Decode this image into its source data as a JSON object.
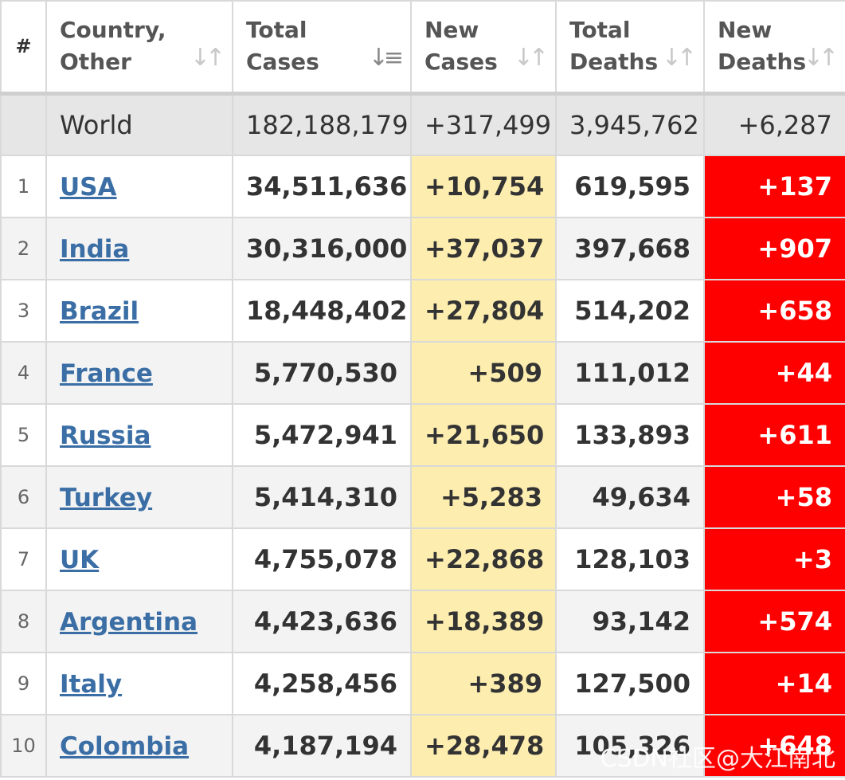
{
  "table": {
    "headers": {
      "index": "#",
      "country": [
        "Country,",
        "Other"
      ],
      "total_cases": [
        "Total",
        "Cases"
      ],
      "new_cases": [
        "New",
        "Cases"
      ],
      "total_deaths": [
        "Total",
        "Deaths"
      ],
      "new_deaths": [
        "New",
        "Deaths"
      ]
    },
    "sort_icons": {
      "inactive": "sort-both-icon",
      "active": "sort-descending-icon",
      "active_column": "total_cases"
    },
    "world": {
      "name": "World",
      "total_cases": "182,188,179",
      "new_cases": "+317,499",
      "total_deaths": "3,945,762",
      "new_deaths": "+6,287"
    },
    "rows": [
      {
        "index": "1",
        "country": "USA",
        "total_cases": "34,511,636",
        "new_cases": "+10,754",
        "total_deaths": "619,595",
        "new_deaths": "+137"
      },
      {
        "index": "2",
        "country": "India",
        "total_cases": "30,316,000",
        "new_cases": "+37,037",
        "total_deaths": "397,668",
        "new_deaths": "+907"
      },
      {
        "index": "3",
        "country": "Brazil",
        "total_cases": "18,448,402",
        "new_cases": "+27,804",
        "total_deaths": "514,202",
        "new_deaths": "+658"
      },
      {
        "index": "4",
        "country": "France",
        "total_cases": "5,770,530",
        "new_cases": "+509",
        "total_deaths": "111,012",
        "new_deaths": "+44"
      },
      {
        "index": "5",
        "country": "Russia",
        "total_cases": "5,472,941",
        "new_cases": "+21,650",
        "total_deaths": "133,893",
        "new_deaths": "+611"
      },
      {
        "index": "6",
        "country": "Turkey",
        "total_cases": "5,414,310",
        "new_cases": "+5,283",
        "total_deaths": "49,634",
        "new_deaths": "+58"
      },
      {
        "index": "7",
        "country": "UK",
        "total_cases": "4,755,078",
        "new_cases": "+22,868",
        "total_deaths": "128,103",
        "new_deaths": "+3"
      },
      {
        "index": "8",
        "country": "Argentina",
        "total_cases": "4,423,636",
        "new_cases": "+18,389",
        "total_deaths": "93,142",
        "new_deaths": "+574"
      },
      {
        "index": "9",
        "country": "Italy",
        "total_cases": "4,258,456",
        "new_cases": "+389",
        "total_deaths": "127,500",
        "new_deaths": "+14"
      },
      {
        "index": "10",
        "country": "Colombia",
        "total_cases": "4,187,194",
        "new_cases": "+28,478",
        "total_deaths": "105,326",
        "new_deaths": "+648"
      }
    ]
  },
  "colors": {
    "new_cases_bg": "#fdeeb0",
    "new_deaths_bg": "#ff0000",
    "link": "#3a6ea5",
    "world_bg": "#e6e6e6"
  },
  "watermark": "CSDN社区@大江南北"
}
